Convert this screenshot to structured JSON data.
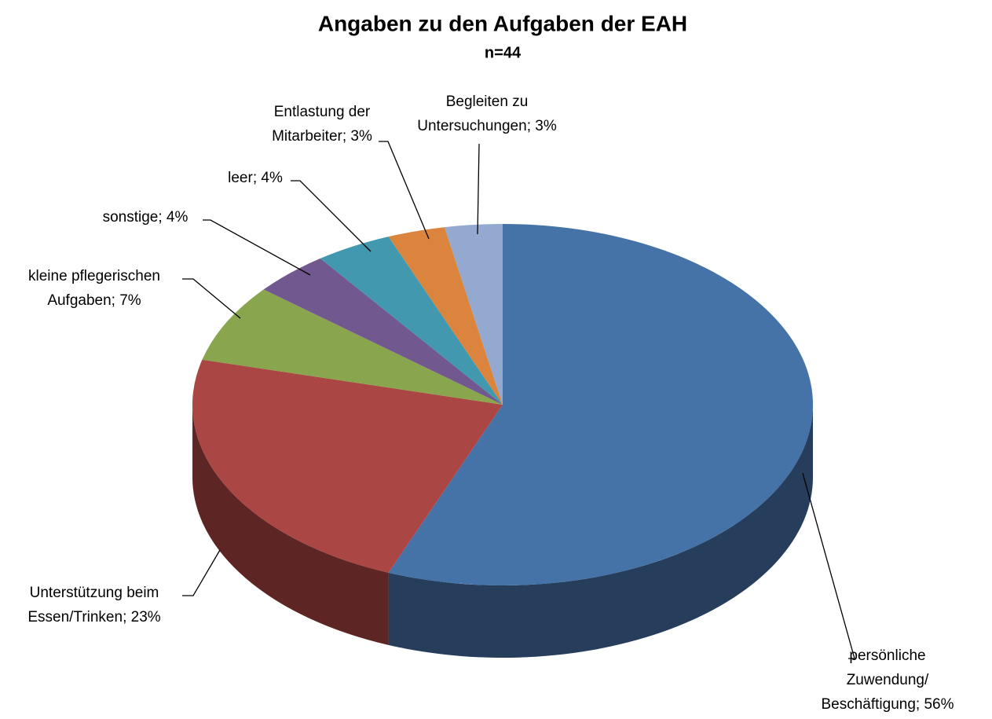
{
  "chart_data": {
    "type": "pie",
    "title": "Angaben zu den Aufgaben der  EAH",
    "subtitle": "n=44",
    "values": [
      56,
      23,
      7,
      4,
      4,
      3,
      3
    ],
    "value_labels": [
      [
        "persönliche",
        "Zuwendung/",
        "Beschäftigung; 56%"
      ],
      [
        "Unterstützung beim",
        "Essen/Trinken; 23%"
      ],
      [
        "kleine pflegerischen",
        "Aufgaben; 7%"
      ],
      [
        "sonstige; 4%"
      ],
      [
        "leer; 4%"
      ],
      [
        "Entlastung der",
        "Mitarbeiter; 3%"
      ],
      [
        "Begleiten zu",
        "Untersuchungen; 3%"
      ]
    ],
    "colors": [
      "#4572a7",
      "#aa4643",
      "#89a54e",
      "#71588f",
      "#4198af",
      "#db843d",
      "#93a9cf"
    ],
    "start_angle": 0,
    "direction": "clockwise",
    "3d": true
  }
}
